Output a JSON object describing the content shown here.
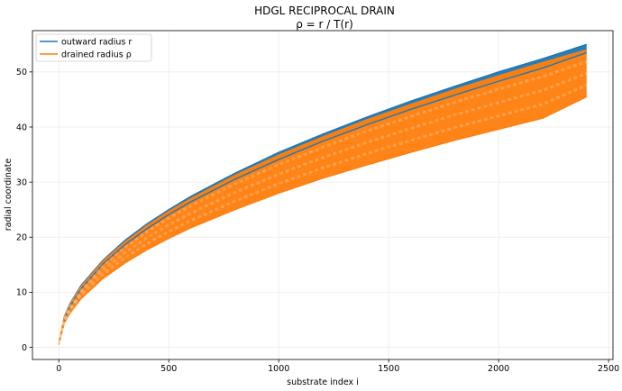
{
  "chart_data": {
    "type": "line",
    "title": "HDGL RECIPROCAL DRAIN",
    "subtitle": "ρ = r / T(r)",
    "xlabel": "substrate index i",
    "ylabel": "radial coordinate",
    "xlim": [
      -120,
      2520
    ],
    "ylim": [
      -2.2,
      57.5
    ],
    "x_ticks": [
      0,
      500,
      1000,
      1500,
      2000,
      2500
    ],
    "y_ticks": [
      0,
      10,
      20,
      30,
      40,
      50
    ],
    "grid": true,
    "legend_position": "top-left",
    "series": [
      {
        "name": "outward radius r",
        "color": "#1f77b4",
        "x": [
          0,
          25,
          50,
          100,
          200,
          300,
          400,
          500,
          600,
          800,
          1000,
          1200,
          1400,
          1600,
          1800,
          2000,
          2200,
          2400
        ],
        "upper": [
          0.8,
          5.6,
          7.9,
          11.2,
          15.8,
          19.4,
          22.4,
          25.0,
          27.4,
          31.6,
          35.4,
          38.7,
          41.8,
          44.7,
          47.4,
          50.0,
          52.4,
          55.0
        ],
        "lower": [
          0.5,
          5.2,
          7.4,
          10.6,
          15.1,
          18.6,
          21.5,
          24.1,
          26.4,
          30.5,
          34.1,
          37.4,
          40.4,
          43.2,
          45.8,
          48.3,
          50.7,
          53.5
        ]
      },
      {
        "name": "drained radius ρ",
        "color": "#ff7f0e",
        "x": [
          0,
          25,
          50,
          100,
          200,
          300,
          400,
          500,
          600,
          800,
          1000,
          1200,
          1400,
          1600,
          1800,
          2000,
          2200,
          2400
        ],
        "upper": [
          0.8,
          5.5,
          7.8,
          11.0,
          15.6,
          19.1,
          22.1,
          24.7,
          27.0,
          31.2,
          34.9,
          38.2,
          41.3,
          44.1,
          46.8,
          49.3,
          51.7,
          54.0
        ],
        "lower": [
          0.5,
          4.4,
          6.2,
          8.8,
          12.5,
          15.3,
          17.7,
          19.8,
          21.7,
          25.0,
          28.0,
          30.7,
          33.1,
          35.4,
          37.6,
          39.6,
          41.6,
          45.5
        ]
      }
    ]
  }
}
